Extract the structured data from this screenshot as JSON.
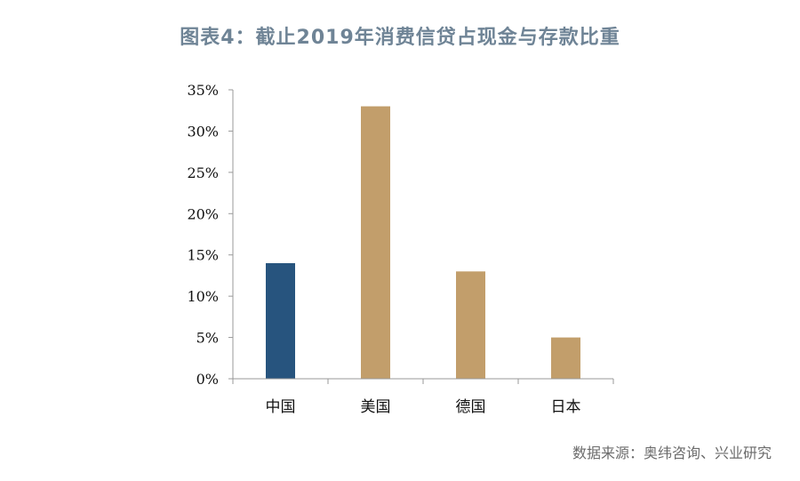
{
  "chart_data": {
    "type": "bar",
    "title": "图表4：截止2019年消费信贷占现金与存款比重",
    "categories": [
      "中国",
      "美国",
      "德国",
      "日本"
    ],
    "values": [
      14,
      33,
      13,
      5
    ],
    "ylim": [
      0,
      35
    ],
    "yticks": [
      0,
      5,
      10,
      15,
      20,
      25,
      30,
      35
    ],
    "ytick_suffix": "%",
    "bar_colors": [
      "#27547e",
      "#c29e6b",
      "#c29e6b",
      "#c29e6b"
    ],
    "axis_color": "#999999",
    "grid": false,
    "source": "数据来源：奥纬咨询、兴业研究"
  }
}
